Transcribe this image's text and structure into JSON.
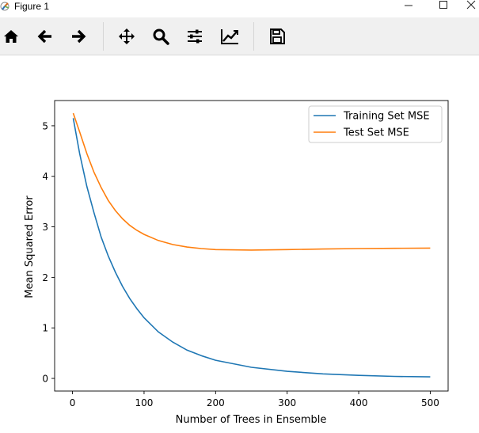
{
  "window": {
    "title": "Figure 1",
    "controls": [
      "minimize",
      "maximize",
      "close"
    ]
  },
  "toolbar": {
    "tools": [
      {
        "name": "home",
        "icon": "home-icon"
      },
      {
        "name": "back",
        "icon": "arrow-left-icon"
      },
      {
        "name": "forward",
        "icon": "arrow-right-icon"
      },
      {
        "name": "pan",
        "icon": "move-icon"
      },
      {
        "name": "zoom",
        "icon": "magnifier-icon"
      },
      {
        "name": "subplots",
        "icon": "sliders-icon"
      },
      {
        "name": "edit-axis",
        "icon": "line-chart-icon"
      },
      {
        "name": "save",
        "icon": "floppy-disk-icon"
      }
    ]
  },
  "chart_data": {
    "type": "line",
    "xlabel": "Number of Trees in Ensemble",
    "ylabel": "Mean Squared Error",
    "xlim": [
      -25,
      525
    ],
    "ylim": [
      -0.25,
      5.5
    ],
    "xticks": [
      0,
      100,
      200,
      300,
      400,
      500
    ],
    "yticks": [
      0,
      1,
      2,
      3,
      4,
      5
    ],
    "grid": false,
    "legend": {
      "placement": "upper-right"
    },
    "series": [
      {
        "name": "Training Set MSE",
        "color": "#1f77b4",
        "x": [
          1,
          10,
          20,
          30,
          40,
          50,
          60,
          70,
          80,
          90,
          100,
          120,
          140,
          160,
          180,
          200,
          250,
          300,
          350,
          400,
          450,
          500
        ],
        "y": [
          5.15,
          4.45,
          3.8,
          3.28,
          2.8,
          2.42,
          2.1,
          1.82,
          1.58,
          1.38,
          1.2,
          0.92,
          0.72,
          0.56,
          0.45,
          0.36,
          0.22,
          0.14,
          0.09,
          0.06,
          0.04,
          0.03
        ]
      },
      {
        "name": "Test Set MSE",
        "color": "#ff7f0e",
        "x": [
          1,
          10,
          20,
          30,
          40,
          50,
          60,
          70,
          80,
          90,
          100,
          120,
          140,
          160,
          180,
          200,
          250,
          300,
          350,
          400,
          450,
          500
        ],
        "y": [
          5.25,
          4.88,
          4.45,
          4.08,
          3.78,
          3.52,
          3.32,
          3.16,
          3.03,
          2.93,
          2.85,
          2.73,
          2.65,
          2.6,
          2.57,
          2.55,
          2.54,
          2.55,
          2.56,
          2.57,
          2.575,
          2.58
        ]
      }
    ]
  }
}
